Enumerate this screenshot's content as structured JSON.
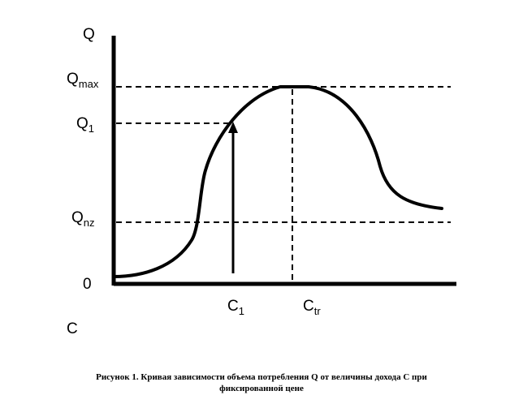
{
  "axes": {
    "y_label": "Q",
    "x_label": "C",
    "origin": "0"
  },
  "levels": {
    "q_max": {
      "base": "Q",
      "sub": "max"
    },
    "q1": {
      "base": "Q",
      "sub": "1"
    },
    "q_nz": {
      "base": "Q",
      "sub": "nz"
    }
  },
  "points": {
    "c1": {
      "base": "C",
      "sub": "1"
    },
    "c_tr": {
      "base": "C",
      "sub": "tr"
    }
  },
  "caption": {
    "line1": "Рисунок 1. Кривая зависимости объема потребления Q от величины дохода С при",
    "line2": "фиксированной цене"
  },
  "colors": {
    "ink": "#000000",
    "background": "#ffffff"
  }
}
